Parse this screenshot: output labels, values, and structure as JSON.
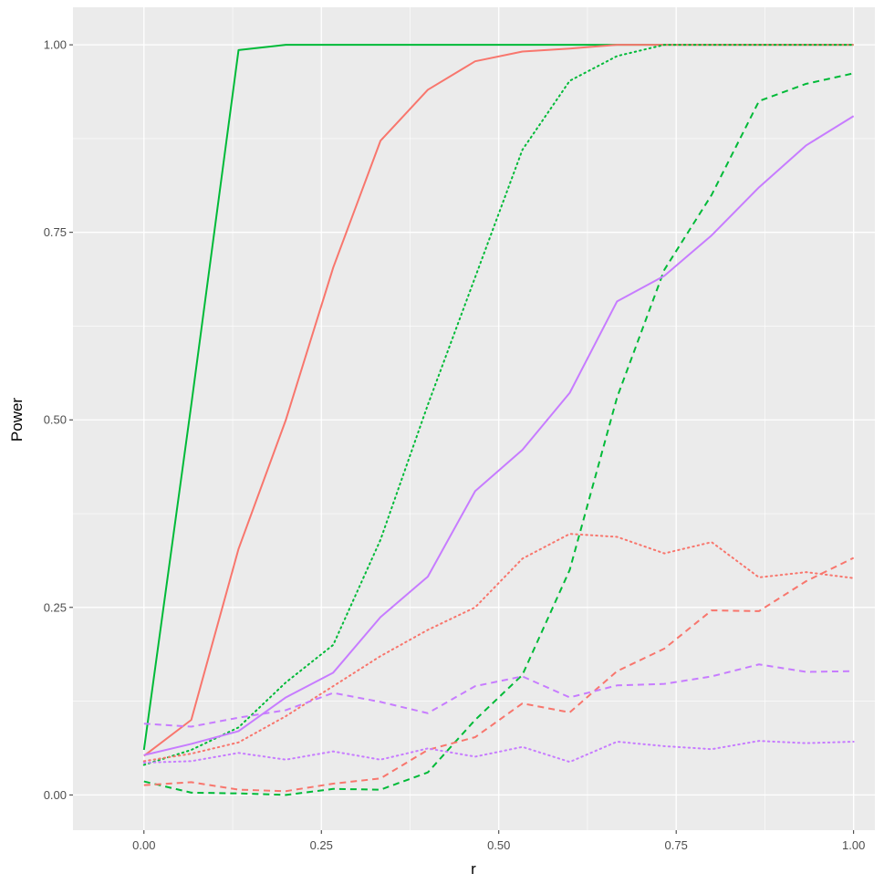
{
  "chart_data": {
    "type": "line",
    "xlabel": "r",
    "ylabel": "Power",
    "xlim": [
      -0.1,
      1.03
    ],
    "ylim": [
      -0.047,
      1.05
    ],
    "x_ticks": [
      0,
      0.25,
      0.5,
      0.75,
      1
    ],
    "x_tick_labels": [
      "0.00",
      "0.25",
      "0.50",
      "0.75",
      "1.00"
    ],
    "y_ticks": [
      0,
      0.25,
      0.5,
      0.75,
      1
    ],
    "y_tick_labels": [
      "0.00",
      "0.25",
      "0.50",
      "0.75",
      "1.00"
    ],
    "grid": true,
    "legend": "none",
    "x": [
      0,
      0.0667,
      0.1333,
      0.2,
      0.2667,
      0.3333,
      0.4,
      0.4667,
      0.5333,
      0.6,
      0.6667,
      0.7333,
      0.8,
      0.8667,
      0.9333,
      1
    ],
    "series": [
      {
        "color": "#00BA38",
        "linetype": "solid",
        "values": [
          0.06,
          0.52,
          0.993,
          1.0,
          1.0,
          1.0,
          1.0,
          1.0,
          1.0,
          1.0,
          1.0,
          1.0,
          1.0,
          1.0,
          1.0,
          1.0
        ]
      },
      {
        "color": "#F8766D",
        "linetype": "solid",
        "values": [
          0.052,
          0.1,
          0.328,
          0.5,
          0.703,
          0.872,
          0.94,
          0.978,
          0.991,
          0.995,
          1.0,
          1.0,
          1.0,
          1.0,
          1.0,
          1.0
        ]
      },
      {
        "color": "#00BA38",
        "linetype": "dotted",
        "values": [
          0.04,
          0.06,
          0.09,
          0.15,
          0.2,
          0.34,
          0.52,
          0.69,
          0.86,
          0.952,
          0.985,
          1.0,
          1.0,
          1.0,
          1.0,
          1.0
        ]
      },
      {
        "color": "#00BA38",
        "linetype": "dashed",
        "values": [
          0.018,
          0.003,
          0.002,
          0.0,
          0.008,
          0.007,
          0.03,
          0.1,
          0.16,
          0.3,
          0.53,
          0.7,
          0.8,
          0.925,
          0.948,
          0.962
        ]
      },
      {
        "color": "#C77CFF",
        "linetype": "solid",
        "values": [
          0.053,
          0.068,
          0.085,
          0.13,
          0.163,
          0.237,
          0.291,
          0.405,
          0.46,
          0.536,
          0.658,
          0.692,
          0.746,
          0.81,
          0.866,
          0.905
        ]
      },
      {
        "color": "#F8766D",
        "linetype": "dotted",
        "values": [
          0.045,
          0.055,
          0.07,
          0.105,
          0.145,
          0.185,
          0.22,
          0.25,
          0.315,
          0.348,
          0.344,
          0.322,
          0.337,
          0.29,
          0.297,
          0.289
        ]
      },
      {
        "color": "#F8766D",
        "linetype": "dashed",
        "values": [
          0.013,
          0.017,
          0.007,
          0.005,
          0.015,
          0.022,
          0.06,
          0.077,
          0.122,
          0.11,
          0.165,
          0.195,
          0.246,
          0.245,
          0.285,
          0.316
        ]
      },
      {
        "color": "#C77CFF",
        "linetype": "dashed",
        "values": [
          0.095,
          0.091,
          0.103,
          0.113,
          0.136,
          0.124,
          0.109,
          0.145,
          0.158,
          0.13,
          0.146,
          0.148,
          0.158,
          0.174,
          0.164,
          0.165
        ]
      },
      {
        "color": "#C77CFF",
        "linetype": "dotted",
        "values": [
          0.043,
          0.045,
          0.056,
          0.047,
          0.058,
          0.047,
          0.062,
          0.051,
          0.064,
          0.044,
          0.071,
          0.065,
          0.061,
          0.072,
          0.069,
          0.071
        ]
      }
    ]
  }
}
